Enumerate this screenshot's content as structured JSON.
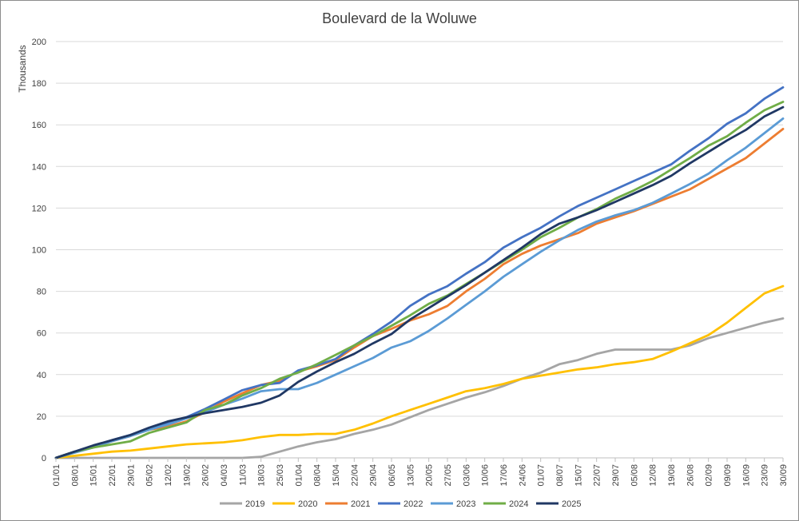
{
  "chart_data": {
    "type": "line",
    "title": "Boulevard de la Woluwe",
    "ylabel": "Thousands",
    "xlabel": "",
    "ylim": [
      0,
      200
    ],
    "yticks": [
      0,
      20,
      40,
      60,
      80,
      100,
      120,
      140,
      160,
      180,
      200
    ],
    "x_tick_labels": [
      "01/01",
      "08/01",
      "15/01",
      "22/01",
      "29/01",
      "05/02",
      "12/02",
      "19/02",
      "26/02",
      "04/03",
      "11/03",
      "18/03",
      "25/03",
      "01/04",
      "08/04",
      "15/04",
      "22/04",
      "29/04",
      "06/05",
      "13/05",
      "20/05",
      "27/05",
      "03/06",
      "10/06",
      "17/06",
      "24/06",
      "01/07",
      "08/07",
      "15/07",
      "22/07",
      "29/07",
      "05/08",
      "12/08",
      "19/08",
      "26/08",
      "02/09",
      "09/09",
      "16/09",
      "23/09",
      "30/09"
    ],
    "grid": true,
    "legend": "bottom",
    "series": [
      {
        "name": "2019",
        "color": "#a5a5a5",
        "values": [
          0,
          0,
          0,
          0,
          0,
          0,
          0,
          0,
          0,
          0,
          0,
          0.5,
          3,
          5.5,
          7.5,
          9,
          11.5,
          13.5,
          16,
          19.5,
          23,
          26,
          29,
          31.5,
          34.5,
          38,
          41,
          45,
          47,
          50,
          52,
          52,
          52,
          52,
          54,
          57.5,
          60,
          62.5,
          65,
          67
        ]
      },
      {
        "name": "2020",
        "color": "#ffc000",
        "values": [
          0,
          1,
          2,
          3,
          3.5,
          4.5,
          5.5,
          6.5,
          7,
          7.5,
          8.5,
          10,
          11,
          11,
          11.5,
          11.5,
          13.5,
          16.5,
          20,
          23,
          26,
          29,
          32,
          33.5,
          35.5,
          38,
          39.5,
          41,
          42.5,
          43.5,
          45,
          46,
          47.5,
          51,
          55,
          59,
          65,
          72,
          79,
          82.5
        ]
      },
      {
        "name": "2021",
        "color": "#ed7d31",
        "values": [
          0,
          3,
          5,
          8,
          10.5,
          13.5,
          15,
          17.5,
          22,
          27,
          31,
          35,
          37,
          41.5,
          44,
          47,
          53,
          58.5,
          62,
          66,
          69,
          73,
          80,
          86,
          93,
          98,
          102,
          105,
          108,
          112.5,
          115.5,
          118.5,
          122,
          125.5,
          129,
          134,
          139,
          144,
          151,
          158
        ]
      },
      {
        "name": "2022",
        "color": "#4472c4",
        "values": [
          0,
          3,
          5.5,
          8.5,
          11,
          14,
          16.5,
          19.5,
          23.5,
          28,
          32.5,
          35,
          36,
          42,
          44.5,
          47.5,
          54,
          59.5,
          65.5,
          73,
          78.5,
          82.5,
          88.5,
          94,
          101,
          106,
          110.5,
          116,
          121,
          125,
          129,
          133,
          137,
          141,
          147.5,
          153.5,
          160.5,
          165.5,
          172.5,
          178
        ]
      },
      {
        "name": "2023",
        "color": "#5b9bd5",
        "values": [
          0,
          2.5,
          5,
          8,
          10.5,
          13.5,
          16,
          19,
          22,
          25.5,
          28.5,
          32,
          33,
          33,
          36,
          40,
          44,
          48,
          53,
          56,
          61,
          67,
          73.5,
          80,
          87,
          93,
          99,
          104.5,
          109.5,
          113.5,
          116.5,
          119,
          122.5,
          127,
          131.5,
          136.5,
          143,
          149,
          156,
          163
        ]
      },
      {
        "name": "2024",
        "color": "#70ad47",
        "values": [
          0,
          3,
          5,
          6.5,
          8,
          12,
          14.5,
          17,
          23,
          25.5,
          30,
          33.5,
          38,
          41,
          45,
          49.5,
          54,
          58.5,
          63.5,
          68.5,
          74,
          78,
          83.5,
          89,
          94.5,
          100,
          106,
          110.5,
          115.5,
          119.5,
          124.5,
          128.5,
          133,
          138.5,
          144,
          150,
          154.5,
          161,
          167,
          171
        ]
      },
      {
        "name": "2025",
        "color": "#203864",
        "values": [
          0,
          3,
          6,
          8.5,
          11,
          14.5,
          17.5,
          19.5,
          21.5,
          23,
          24.5,
          26.5,
          30,
          36.5,
          41.5,
          46,
          50,
          55,
          59.5,
          66.5,
          72,
          77.5,
          83,
          89,
          95,
          101,
          107.5,
          112.5,
          115.5,
          119,
          123,
          127,
          131,
          135.5,
          141.5,
          147,
          152.5,
          157.5,
          164,
          168.5
        ]
      }
    ]
  }
}
